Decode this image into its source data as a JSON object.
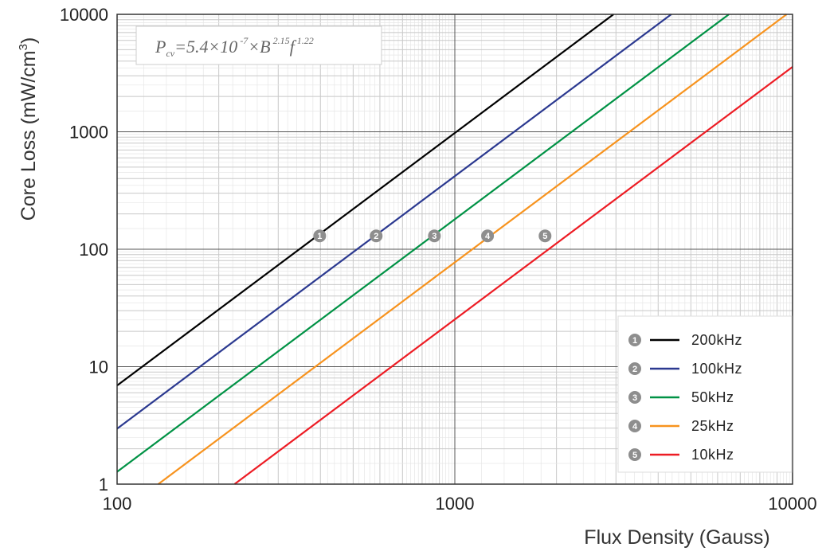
{
  "chart_data": {
    "type": "line",
    "xlabel": "Flux Density (Gauss)",
    "ylabel_main": "Core Loss (mW/cm",
    "ylabel_sup": "3",
    "ylabel_end": ")",
    "xscale": "log",
    "yscale": "log",
    "xlim": [
      100,
      10000
    ],
    "ylim": [
      1,
      10000
    ],
    "x_ticks": [
      100,
      1000,
      10000
    ],
    "x_tick_labels": [
      "100",
      "1000",
      "10000"
    ],
    "y_ticks": [
      1,
      10,
      100,
      1000,
      10000
    ],
    "y_tick_labels": [
      "1",
      "10",
      "100",
      "1000",
      "10000"
    ],
    "grid": true,
    "legend_position": "bottom-right",
    "formula": {
      "p": "P",
      "p_sub": "cv",
      "mid": "=5.4×10",
      "exp1": " -7",
      "times_b": "×B",
      "exp2": " 2.15",
      "f": "f",
      "exp3": " 1.22"
    },
    "series": [
      {
        "name": "200kHz",
        "marker": "1",
        "color": "#000000",
        "freq_khz": 200,
        "label_x": 398
      },
      {
        "name": "100kHz",
        "marker": "2",
        "color": "#2b3990",
        "freq_khz": 100,
        "label_x": 585
      },
      {
        "name": "50kHz",
        "marker": "3",
        "color": "#009245",
        "freq_khz": 50,
        "label_x": 870
      },
      {
        "name": "25kHz",
        "marker": "4",
        "color": "#f7931e",
        "freq_khz": 25,
        "label_x": 1250
      },
      {
        "name": "10kHz",
        "marker": "5",
        "color": "#ed1c24",
        "freq_khz": 10,
        "label_x": 1850
      }
    ],
    "marker_y": 130,
    "coefficient": 5.4e-07,
    "b_exponent": 2.15,
    "f_exponent": 1.22
  }
}
